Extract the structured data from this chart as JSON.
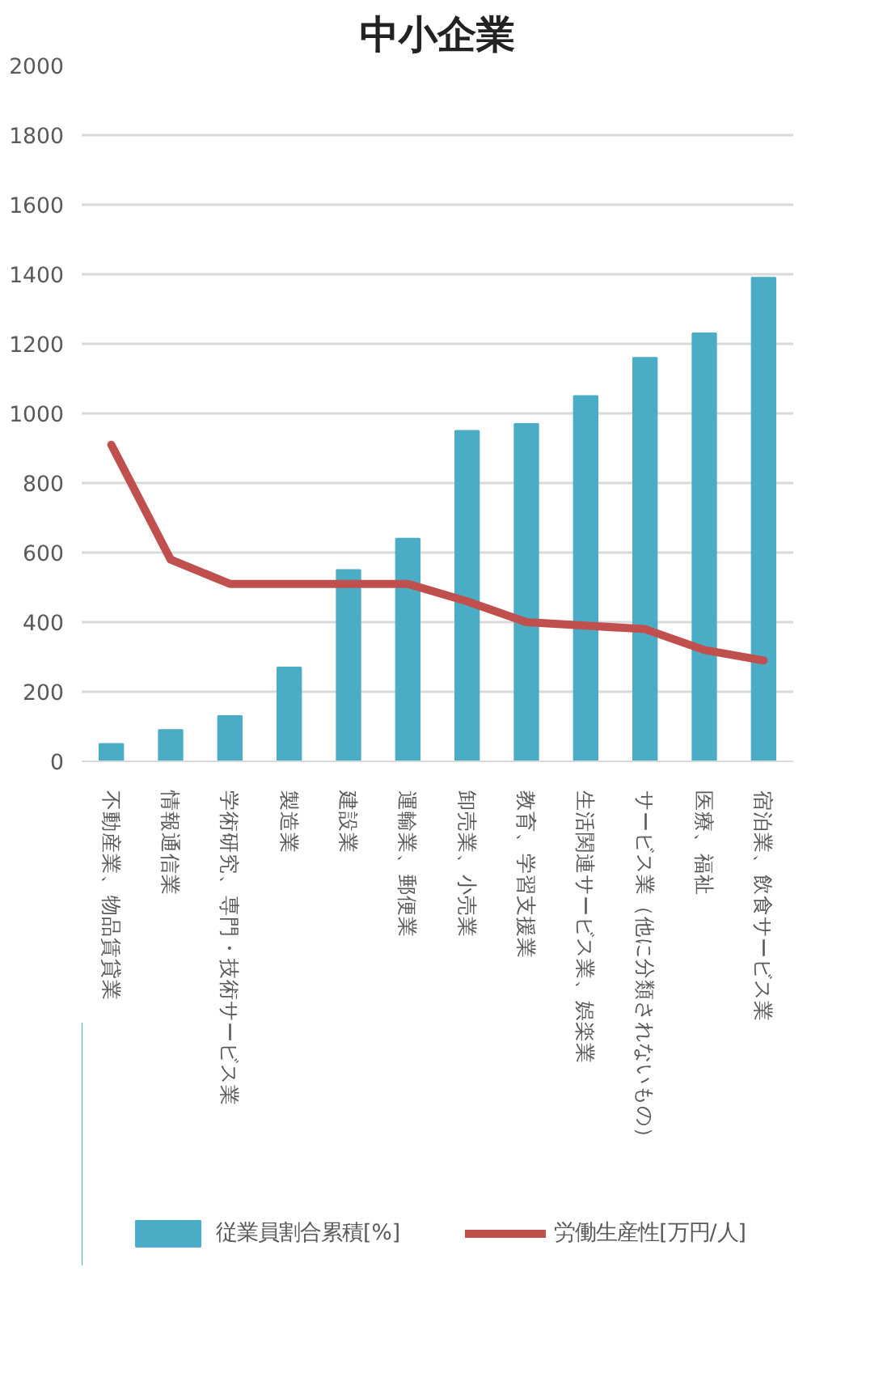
{
  "chart_data": {
    "type": "bar",
    "title": "中小企業",
    "categories": [
      "不動産業、物品賃貸業",
      "情報通信業",
      "学術研究、専門・技術サービス業",
      "製造業",
      "建設業",
      "運輸業、郵便業",
      "卸売業、小売業",
      "教育、学習支援業",
      "生活関連サービス業、娯楽業",
      "サービス業（他に分類されないもの）",
      "医療、福祉",
      "宿泊業、飲食サービス業"
    ],
    "series": [
      {
        "name": "従業員割合累積[%]",
        "color": "#4bacc6",
        "values": [
          50,
          90,
          130,
          270,
          550,
          640,
          950,
          970,
          1050,
          1160,
          1230,
          1390
        ]
      },
      {
        "name": "労働生産性[万円/人]",
        "type": "line",
        "color": "#c0504d",
        "values": [
          910,
          580,
          510,
          510,
          510,
          510,
          460,
          400,
          390,
          380,
          320,
          290
        ]
      }
    ],
    "ylim": [
      0,
      2000
    ],
    "yticks": [
      0,
      200,
      400,
      600,
      800,
      1000,
      1200,
      1400,
      1600,
      1800,
      2000
    ],
    "grid": "y",
    "legend": "bottom"
  }
}
